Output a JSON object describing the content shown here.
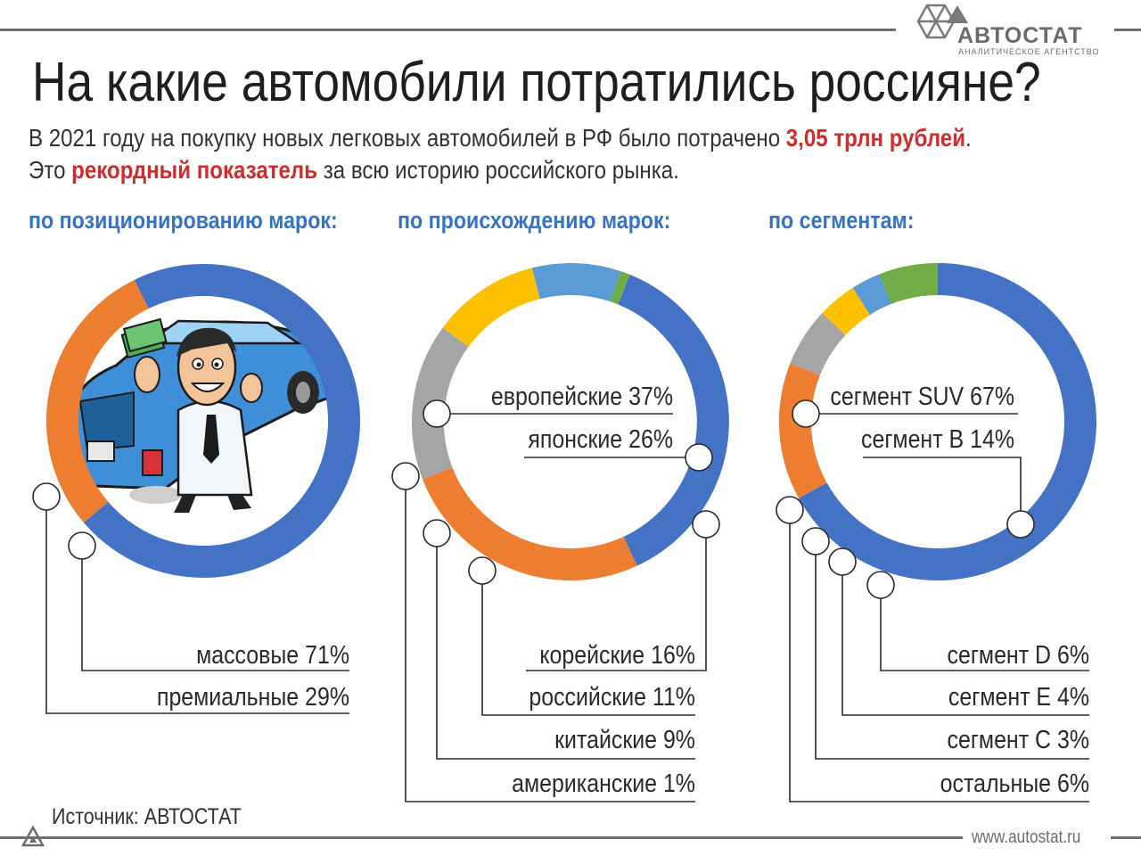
{
  "header": {
    "title": "На какие автомобили потратились россияне?",
    "subtitle_line1_a": "В 2021 году на покупку новых легковых автомобилей в РФ было потрачено ",
    "subtitle_line1_b": "3,05 трлн рублей",
    "subtitle_line1_c": ".",
    "subtitle_line2_a": "Это ",
    "subtitle_line2_b": "рекордный показатель",
    "subtitle_line2_c": " за всю историю российского рынка."
  },
  "logo": {
    "name": "АВТОСТАТ",
    "tagline": "АНАЛИТИЧЕСКОЕ АГЕНТСТВО"
  },
  "footer": {
    "source": "Источник: АВТОСТАТ",
    "url": "www.autostat.ru"
  },
  "colors": {
    "blue": "#4472c4",
    "orange": "#ed7d31",
    "gray": "#a5a5a5",
    "yellow": "#ffc000",
    "lightblue": "#5b9bd5",
    "green": "#70ad47",
    "red": "#d22b2b",
    "section": "#3574c4"
  },
  "chart_data": [
    {
      "type": "donut",
      "title": "по позиционированию марок:",
      "illustration": "businessman-with-money-and-blue-car",
      "slices": [
        {
          "label": "массовые 71%",
          "value": 71,
          "color": "#4472c4"
        },
        {
          "label": "премиальные 29%",
          "value": 29,
          "color": "#ed7d31"
        }
      ]
    },
    {
      "type": "donut",
      "title": "по происхождению марок:",
      "slices": [
        {
          "label": "европейские 37%",
          "value": 37,
          "color": "#4472c4"
        },
        {
          "label": "японские 26%",
          "value": 26,
          "color": "#ed7d31"
        },
        {
          "label": "корейские 16%",
          "value": 16,
          "color": "#a5a5a5"
        },
        {
          "label": "российские 11%",
          "value": 11,
          "color": "#ffc000"
        },
        {
          "label": "китайские 9%",
          "value": 9,
          "color": "#5b9bd5"
        },
        {
          "label": "американские 1%",
          "value": 1,
          "color": "#70ad47"
        }
      ]
    },
    {
      "type": "donut",
      "title": "по сегментам:",
      "slices": [
        {
          "label": "сегмент SUV 67%",
          "value": 67,
          "color": "#4472c4"
        },
        {
          "label": "сегмент B 14%",
          "value": 14,
          "color": "#ed7d31"
        },
        {
          "label": "сегмент D 6%",
          "value": 6,
          "color": "#a5a5a5"
        },
        {
          "label": "сегмент E 4%",
          "value": 4,
          "color": "#ffc000"
        },
        {
          "label": "сегмент C 3%",
          "value": 3,
          "color": "#5b9bd5"
        },
        {
          "label": "остальные 6%",
          "value": 6,
          "color": "#70ad47"
        }
      ]
    }
  ]
}
